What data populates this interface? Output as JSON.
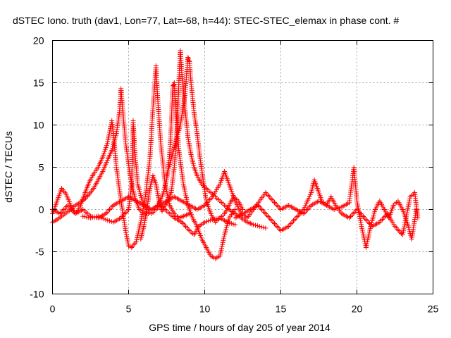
{
  "chart_data": {
    "type": "scatter",
    "title": "dSTEC Iono. truth (dav1, Lon=77, Lat=-68, h=44): STEC-STEC_elemax in phase cont. #",
    "xlabel": "GPS time / hours of day 205 of year 2014",
    "ylabel": "dSTEC  / TECUs",
    "xlim": [
      0,
      25
    ],
    "ylim": [
      -10,
      20
    ],
    "xticks": [
      0,
      5,
      10,
      15,
      20,
      25
    ],
    "yticks": [
      -10,
      -5,
      0,
      5,
      10,
      15,
      20
    ],
    "xtick_labels": [
      "0",
      "5",
      "10",
      "15",
      "20",
      "25"
    ],
    "ytick_labels": [
      "-10",
      "-5",
      "0",
      "5",
      "10",
      "15",
      "20"
    ],
    "grid": true,
    "marker": "plus",
    "color": "#ff0000",
    "series": [
      {
        "arcs": [
          [
            0.0,
            -0.5
          ],
          [
            0.3,
            1.0
          ],
          [
            0.6,
            2.5
          ],
          [
            0.9,
            1.8
          ],
          [
            1.2,
            0.5
          ],
          [
            1.5,
            -0.5
          ],
          [
            1.8,
            0.3
          ],
          [
            2.1,
            1.8
          ],
          [
            2.4,
            3.2
          ],
          [
            2.7,
            4.2
          ],
          [
            3.0,
            5.0
          ],
          [
            3.3,
            6.2
          ],
          [
            3.6,
            7.8
          ],
          [
            3.9,
            10.5
          ],
          [
            4.0,
            9.0
          ],
          [
            4.2,
            5.0
          ],
          [
            4.5,
            1.0
          ],
          [
            4.8,
            -2.5
          ],
          [
            5.0,
            -4.3
          ],
          [
            5.2,
            -4.5
          ],
          [
            5.5,
            -3.8
          ],
          [
            5.8,
            -1.5
          ],
          [
            6.1,
            1.5
          ],
          [
            6.4,
            6.0
          ],
          [
            6.6,
            12.0
          ],
          [
            6.8,
            17.0
          ],
          [
            6.9,
            13.5
          ],
          [
            7.1,
            8.0
          ],
          [
            7.4,
            3.0
          ],
          [
            7.7,
            0.5
          ],
          [
            8.0,
            -0.5
          ],
          [
            8.3,
            -1.0
          ],
          [
            8.6,
            -0.8
          ],
          [
            9.0,
            -0.5
          ]
        ]
      },
      {
        "arcs": [
          [
            0.0,
            -1.5
          ],
          [
            0.3,
            -1.2
          ],
          [
            0.6,
            -0.8
          ],
          [
            0.9,
            -0.4
          ],
          [
            1.2,
            0.0
          ],
          [
            1.5,
            0.5
          ],
          [
            1.8,
            0.8
          ],
          [
            2.1,
            1.2
          ],
          [
            2.4,
            1.8
          ],
          [
            2.7,
            2.5
          ],
          [
            3.0,
            3.5
          ],
          [
            3.3,
            4.5
          ],
          [
            3.6,
            5.8
          ],
          [
            3.9,
            7.0
          ],
          [
            4.2,
            9.0
          ],
          [
            4.4,
            11.5
          ],
          [
            4.5,
            14.3
          ],
          [
            4.6,
            12.0
          ],
          [
            4.8,
            8.0
          ],
          [
            5.1,
            4.0
          ],
          [
            5.4,
            1.5
          ],
          [
            5.7,
            0.0
          ],
          [
            6.0,
            -0.5
          ],
          [
            6.3,
            -0.5
          ],
          [
            6.6,
            0.0
          ],
          [
            6.9,
            0.5
          ],
          [
            7.2,
            1.5
          ],
          [
            7.5,
            3.5
          ],
          [
            7.7,
            6.5
          ],
          [
            7.8,
            10.0
          ],
          [
            7.9,
            14.5
          ],
          [
            8.0,
            15.0
          ],
          [
            8.1,
            12.0
          ],
          [
            8.3,
            7.0
          ],
          [
            8.6,
            3.0
          ],
          [
            8.9,
            0.5
          ],
          [
            9.2,
            -1.0
          ],
          [
            9.5,
            -2.0
          ],
          [
            9.8,
            -3.5
          ],
          [
            10.1,
            -4.5
          ],
          [
            10.4,
            -5.5
          ],
          [
            10.7,
            -5.8
          ],
          [
            11.0,
            -5.5
          ],
          [
            11.3,
            -3.0
          ],
          [
            11.6,
            -1.0
          ],
          [
            12.0,
            0.0
          ]
        ]
      },
      {
        "arcs": [
          [
            5.8,
            -3.5
          ],
          [
            6.0,
            -2.0
          ],
          [
            6.2,
            0.0
          ],
          [
            6.4,
            2.5
          ],
          [
            6.6,
            4.0
          ],
          [
            6.8,
            3.0
          ],
          [
            7.0,
            1.0
          ],
          [
            7.2,
            -0.2
          ],
          [
            7.5,
            0.8
          ],
          [
            7.8,
            2.0
          ],
          [
            8.0,
            5.0
          ],
          [
            8.2,
            10.0
          ],
          [
            8.3,
            15.0
          ],
          [
            8.4,
            18.8
          ],
          [
            8.5,
            16.0
          ],
          [
            8.7,
            12.0
          ],
          [
            8.9,
            8.5
          ],
          [
            9.1,
            6.5
          ],
          [
            9.3,
            5.0
          ],
          [
            9.5,
            4.0
          ],
          [
            9.8,
            3.0
          ],
          [
            10.1,
            2.5
          ],
          [
            10.4,
            2.0
          ],
          [
            10.7,
            1.5
          ],
          [
            11.0,
            1.0
          ],
          [
            11.3,
            0.5
          ],
          [
            11.6,
            0.0
          ],
          [
            12.0,
            -0.5
          ],
          [
            12.4,
            -1.0
          ],
          [
            12.8,
            -1.5
          ],
          [
            13.2,
            -1.8
          ],
          [
            13.6,
            -2.0
          ],
          [
            14.0,
            -2.2
          ]
        ]
      },
      {
        "arcs": [
          [
            7.5,
            4.0
          ],
          [
            7.8,
            6.0
          ],
          [
            8.1,
            8.0
          ],
          [
            8.4,
            10.0
          ],
          [
            8.7,
            13.5
          ],
          [
            8.9,
            18.0
          ],
          [
            9.0,
            17.5
          ],
          [
            9.1,
            15.0
          ],
          [
            9.3,
            11.5
          ],
          [
            9.5,
            9.0
          ],
          [
            9.7,
            6.0
          ],
          [
            9.9,
            3.5
          ],
          [
            10.1,
            1.0
          ],
          [
            10.4,
            -0.5
          ],
          [
            10.7,
            -1.5
          ],
          [
            11.0,
            -1.0
          ],
          [
            11.3,
            -0.5
          ],
          [
            11.6,
            0.5
          ],
          [
            11.9,
            1.5
          ],
          [
            12.2,
            1.0
          ],
          [
            12.5,
            0.0
          ]
        ]
      },
      {
        "arcs": [
          [
            0.0,
            0.0
          ],
          [
            0.5,
            -0.5
          ],
          [
            1.0,
            0.5
          ],
          [
            1.5,
            -0.5
          ],
          [
            2.0,
            0.0
          ],
          [
            2.5,
            -0.8
          ],
          [
            3.0,
            -1.0
          ],
          [
            3.5,
            -0.5
          ],
          [
            4.0,
            0.5
          ],
          [
            4.5,
            1.0
          ],
          [
            5.0,
            1.5
          ],
          [
            5.5,
            1.0
          ],
          [
            6.0,
            0.5
          ],
          [
            6.5,
            0.0
          ],
          [
            7.0,
            0.5
          ],
          [
            7.5,
            1.0
          ],
          [
            8.0,
            1.5
          ],
          [
            8.5,
            1.0
          ],
          [
            9.0,
            0.5
          ],
          [
            9.5,
            0.0
          ],
          [
            10.0,
            0.5
          ],
          [
            10.5,
            1.5
          ],
          [
            11.0,
            3.0
          ],
          [
            11.3,
            4.5
          ],
          [
            11.6,
            3.0
          ],
          [
            12.0,
            1.0
          ],
          [
            12.4,
            -0.5
          ],
          [
            12.8,
            -1.0
          ],
          [
            13.2,
            0.0
          ],
          [
            13.6,
            1.0
          ],
          [
            14.0,
            2.0
          ],
          [
            14.5,
            1.0
          ],
          [
            15.0,
            0.0
          ],
          [
            15.5,
            0.5
          ],
          [
            16.0,
            0.0
          ],
          [
            16.5,
            -0.5
          ],
          [
            17.0,
            0.5
          ],
          [
            17.5,
            1.0
          ],
          [
            18.0,
            0.5
          ],
          [
            18.5,
            0.0
          ],
          [
            19.0,
            0.3
          ],
          [
            19.5,
            0.8
          ],
          [
            19.8,
            5.0
          ],
          [
            20.0,
            1.0
          ],
          [
            20.3,
            -2.0
          ],
          [
            20.6,
            -4.5
          ],
          [
            20.9,
            -2.0
          ],
          [
            21.2,
            0.0
          ],
          [
            21.5,
            1.0
          ],
          [
            21.8,
            0.0
          ],
          [
            22.1,
            -1.0
          ],
          [
            22.4,
            0.5
          ],
          [
            22.7,
            1.0
          ],
          [
            23.0,
            0.0
          ],
          [
            23.3,
            -1.5
          ],
          [
            23.6,
            -3.5
          ],
          [
            23.9,
            0.0
          ]
        ]
      },
      {
        "arcs": [
          [
            12.0,
            -1.0
          ],
          [
            12.5,
            -0.5
          ],
          [
            13.0,
            0.0
          ],
          [
            13.5,
            0.5
          ],
          [
            14.0,
            -0.5
          ],
          [
            14.5,
            -1.5
          ],
          [
            15.0,
            -2.5
          ],
          [
            15.5,
            -2.0
          ],
          [
            16.0,
            -1.0
          ],
          [
            16.5,
            0.0
          ],
          [
            17.0,
            2.0
          ],
          [
            17.2,
            3.5
          ],
          [
            17.4,
            2.5
          ],
          [
            17.7,
            1.0
          ],
          [
            18.0,
            0.5
          ],
          [
            18.3,
            1.5
          ],
          [
            18.6,
            0.5
          ],
          [
            19.0,
            -0.5
          ],
          [
            19.5,
            -1.0
          ],
          [
            20.0,
            0.0
          ],
          [
            20.5,
            -1.0
          ],
          [
            21.0,
            -2.0
          ],
          [
            21.5,
            -1.5
          ],
          [
            22.0,
            -0.5
          ],
          [
            22.5,
            -2.0
          ],
          [
            23.0,
            -3.0
          ],
          [
            23.5,
            1.5
          ],
          [
            23.8,
            2.0
          ],
          [
            24.0,
            -1.0
          ]
        ]
      },
      {
        "arcs": [
          [
            2.0,
            -0.8
          ],
          [
            2.5,
            -1.0
          ],
          [
            3.0,
            -0.8
          ],
          [
            3.5,
            -1.2
          ],
          [
            4.0,
            -1.5
          ],
          [
            4.5,
            -1.0
          ],
          [
            5.0,
            0.0
          ],
          [
            5.2,
            3.0
          ],
          [
            5.3,
            10.5
          ],
          [
            5.4,
            7.0
          ],
          [
            5.6,
            3.0
          ],
          [
            5.9,
            1.0
          ],
          [
            6.2,
            0.0
          ],
          [
            6.5,
            -0.5
          ],
          [
            6.8,
            0.0
          ],
          [
            7.1,
            0.5
          ],
          [
            7.4,
            0.0
          ],
          [
            7.7,
            -0.5
          ],
          [
            8.0,
            -1.0
          ],
          [
            8.5,
            -1.5
          ],
          [
            9.0,
            -2.5
          ],
          [
            9.3,
            -3.0
          ],
          [
            9.6,
            -2.0
          ],
          [
            10.0,
            -1.5
          ],
          [
            10.5,
            -1.2
          ],
          [
            11.0,
            -1.0
          ],
          [
            11.5,
            -1.5
          ],
          [
            12.0,
            -1.8
          ]
        ]
      }
    ]
  }
}
